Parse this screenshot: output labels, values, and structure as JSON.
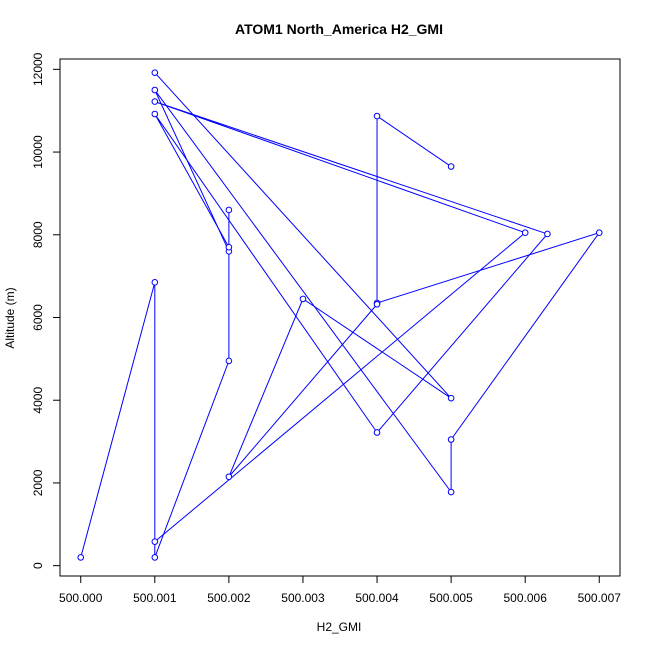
{
  "chart_data": {
    "type": "line",
    "title": "ATOM1 North_America H2_GMI",
    "xlabel": "H2_GMI",
    "ylabel": "Altitude (m)",
    "xlim": [
      499.99972,
      500.00728
    ],
    "ylim": [
      -250,
      12250
    ],
    "x_ticks": [
      500.0,
      500.001,
      500.002,
      500.003,
      500.004,
      500.005,
      500.006,
      500.007
    ],
    "x_tick_labels": [
      "500.000",
      "500.001",
      "500.002",
      "500.003",
      "500.004",
      "500.005",
      "500.006",
      "500.007"
    ],
    "y_ticks": [
      0,
      2000,
      4000,
      6000,
      8000,
      10000,
      12000
    ],
    "y_tick_labels": [
      "0",
      "2000",
      "4000",
      "6000",
      "8000",
      "10000",
      "12000"
    ],
    "grid": false,
    "color": "#0000ff",
    "series": [
      {
        "points": [
          [
            500.0,
            200
          ],
          [
            500.001,
            6850
          ],
          [
            500.001,
            200
          ],
          [
            500.002,
            4950
          ],
          [
            500.002,
            7600
          ],
          [
            500.001,
            11500
          ],
          [
            500.005,
            1780
          ],
          [
            500.005,
            3050
          ],
          [
            500.007,
            8050
          ],
          [
            500.004,
            6350
          ],
          [
            500.004,
            10870
          ],
          [
            500.005,
            9650
          ]
        ]
      },
      {
        "points": [
          [
            500.001,
            580
          ],
          [
            500.006,
            8050
          ],
          [
            500.001,
            11220
          ],
          [
            500.0063,
            8020
          ],
          [
            500.004,
            3220
          ],
          [
            500.001,
            10920
          ],
          [
            500.002,
            7700
          ],
          [
            500.002,
            8600
          ]
        ]
      },
      {
        "points": [
          [
            500.001,
            11920
          ],
          [
            500.005,
            4050
          ],
          [
            500.003,
            6450
          ],
          [
            500.002,
            2150
          ],
          [
            500.004,
            6320
          ]
        ]
      }
    ]
  }
}
